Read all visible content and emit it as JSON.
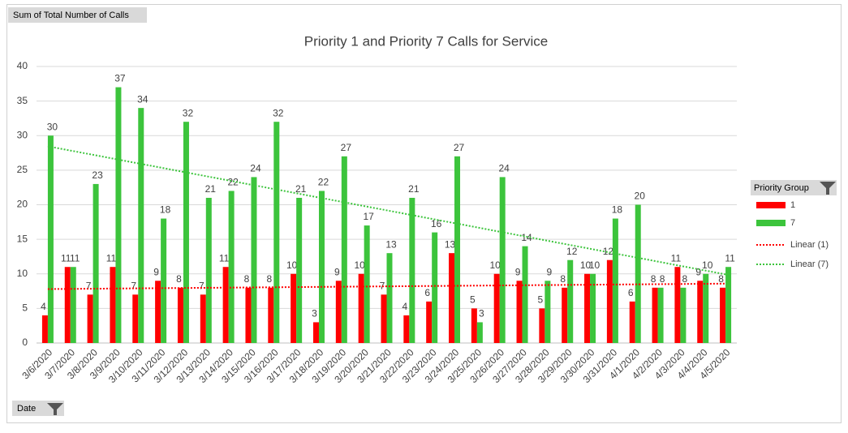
{
  "chart_data": {
    "type": "bar",
    "title": "Priority 1 and Priority 7 Calls for Service",
    "value_field": "Sum of Total Number of Calls",
    "axis_field": "Date",
    "legend_field": "Priority Group",
    "legend": "right",
    "grid": true,
    "categories": [
      "3/6/2020",
      "3/7/2020",
      "3/8/2020",
      "3/9/2020",
      "3/10/2020",
      "3/11/2020",
      "3/12/2020",
      "3/13/2020",
      "3/14/2020",
      "3/15/2020",
      "3/16/2020",
      "3/17/2020",
      "3/18/2020",
      "3/19/2020",
      "3/20/2020",
      "3/21/2020",
      "3/22/2020",
      "3/23/2020",
      "3/24/2020",
      "3/25/2020",
      "3/26/2020",
      "3/27/2020",
      "3/28/2020",
      "3/29/2020",
      "3/30/2020",
      "3/31/2020",
      "4/1/2020",
      "4/2/2020",
      "4/3/2020",
      "4/4/2020",
      "4/5/2020"
    ],
    "series": [
      {
        "name": "1",
        "color": "#ff0000",
        "trendline": "Linear (1)",
        "values": [
          4,
          11,
          7,
          11,
          7,
          9,
          8,
          7,
          11,
          8,
          8,
          10,
          3,
          9,
          10,
          7,
          4,
          6,
          13,
          5,
          10,
          9,
          5,
          8,
          10,
          12,
          6,
          8,
          11,
          9,
          8
        ]
      },
      {
        "name": "7",
        "color": "#3cc43c",
        "trendline": "Linear (7)",
        "values": [
          30,
          11,
          23,
          37,
          34,
          18,
          32,
          21,
          22,
          24,
          32,
          21,
          22,
          27,
          17,
          13,
          21,
          16,
          27,
          3,
          24,
          14,
          9,
          12,
          10,
          18,
          20,
          8,
          8,
          10,
          11
        ]
      }
    ],
    "ylim": [
      0,
      40
    ],
    "yticks": [
      0,
      5,
      10,
      15,
      20,
      25,
      30,
      35,
      40
    ]
  }
}
